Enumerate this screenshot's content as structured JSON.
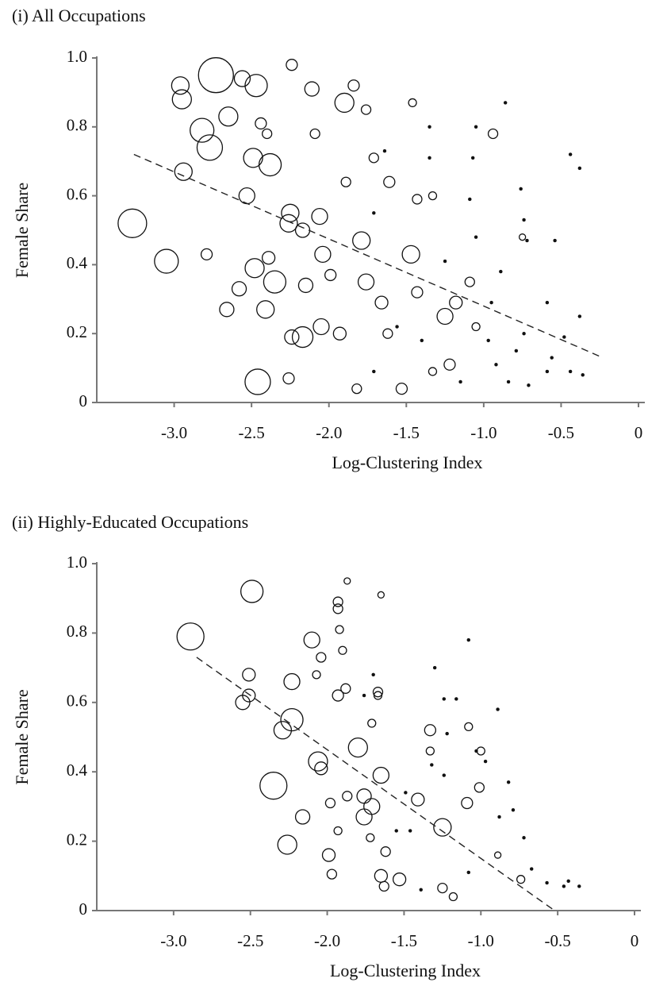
{
  "chart_data": [
    {
      "type": "scatter",
      "title": "(i) All Occupations",
      "x_label": "Log-Clustering Index",
      "y_label": "Female Share",
      "xlim": [
        -3.5,
        0
      ],
      "ylim": [
        0,
        1
      ],
      "xticks": [
        {
          "value": -3,
          "label": "-3.0"
        },
        -2.5,
        {
          "value": -2,
          "label": "-2.0"
        },
        -1.5,
        {
          "value": -1,
          "label": "-1.0"
        },
        -0.5,
        0
      ],
      "yticks": [
        0,
        0.2,
        0.4,
        0.6,
        0.8,
        {
          "value": 1,
          "label": "1.0"
        }
      ],
      "color": "#111111",
      "x": [
        -2.73,
        -3.27,
        -3.05,
        -2.46,
        -2.82,
        -2.77,
        -2.96,
        -2.95,
        -2.94,
        -2.65,
        -2.47,
        -2.49,
        -2.38,
        -2.35,
        -2.48,
        -2.41,
        -2.25,
        -2.26,
        -2.17,
        -2.06,
        -2.05,
        -2.04,
        -1.9,
        -1.79,
        -1.76,
        -1.47,
        -1.25,
        -2.56,
        -2.53,
        -2.58,
        -2.66,
        -2.11,
        -2.24,
        -2.17,
        -2.79,
        -2.24,
        -2.39,
        -2.15,
        -1.99,
        -1.84,
        -1.62,
        -1.93,
        -1.66,
        -1.43,
        -1.22,
        -1.18,
        -1.09,
        -0.94,
        -1.43,
        -1.61,
        -1.71,
        -1.76,
        -1.53,
        -1.82,
        -2.26,
        -2.4,
        -2.44,
        -2.09,
        -1.89,
        -1.46,
        -1.33,
        -1.33,
        -1.05,
        -0.75,
        -0.86,
        -0.44,
        -0.38,
        -0.76,
        -0.74,
        -0.72,
        -0.59,
        -0.54,
        -0.56,
        -0.59,
        -0.44,
        -0.36,
        -0.48,
        -0.97,
        -0.92,
        -1.15,
        -1.09,
        -1.05,
        -0.89,
        -1.25,
        -1.35,
        -1.64,
        -1.71,
        -1.56,
        -1.4,
        -1.71,
        -1.35,
        -1.07,
        -1.05,
        -0.79,
        -0.71,
        -0.38,
        -0.74,
        -0.84,
        -0.95
      ],
      "y": [
        0.95,
        0.52,
        0.41,
        0.06,
        0.79,
        0.74,
        0.92,
        0.88,
        0.67,
        0.83,
        0.92,
        0.71,
        0.69,
        0.35,
        0.39,
        0.27,
        0.55,
        0.52,
        0.19,
        0.54,
        0.22,
        0.43,
        0.87,
        0.47,
        0.35,
        0.43,
        0.25,
        0.94,
        0.6,
        0.33,
        0.27,
        0.91,
        0.19,
        0.5,
        0.43,
        0.98,
        0.42,
        0.34,
        0.37,
        0.92,
        0.2,
        0.2,
        0.29,
        0.32,
        0.11,
        0.29,
        0.35,
        0.78,
        0.59,
        0.64,
        0.71,
        0.85,
        0.04,
        0.04,
        0.07,
        0.78,
        0.81,
        0.78,
        0.64,
        0.87,
        0.6,
        0.09,
        0.22,
        0.48,
        0.87,
        0.72,
        0.68,
        0.62,
        0.53,
        0.47,
        0.29,
        0.47,
        0.13,
        0.09,
        0.09,
        0.08,
        0.19,
        0.18,
        0.11,
        0.06,
        0.59,
        0.48,
        0.38,
        0.41,
        0.8,
        0.73,
        0.55,
        0.22,
        0.18,
        0.09,
        0.71,
        0.71,
        0.8,
        0.15,
        0.05,
        0.25,
        0.2,
        0.06,
        0.29
      ],
      "sizes": [
        22,
        18,
        15,
        16,
        15,
        16,
        11,
        12,
        11,
        12,
        14,
        12,
        14,
        14,
        12,
        11,
        11,
        11,
        13,
        10,
        10,
        10,
        12,
        11,
        10,
        11,
        10,
        10,
        10,
        9,
        9,
        9,
        9,
        9,
        7,
        7,
        8,
        9,
        7,
        7,
        6,
        8,
        8,
        7,
        7,
        8,
        6,
        6,
        6,
        7,
        6,
        6,
        7,
        6,
        7,
        6,
        7,
        6,
        6,
        5,
        5,
        5,
        5,
        4,
        2,
        2,
        2,
        2,
        2,
        2,
        2,
        2,
        2,
        2,
        2,
        2,
        2,
        2,
        2,
        2,
        2,
        2,
        2,
        2,
        2,
        2,
        2,
        2,
        2,
        2,
        2,
        2,
        2,
        2,
        2,
        2,
        2,
        2,
        2
      ],
      "trend": {
        "x": [
          -3.26,
          -0.23
        ],
        "y": [
          0.72,
          0.13
        ]
      }
    },
    {
      "type": "scatter",
      "title": "(ii) Highly-Educated Occupations",
      "x_label": "Log-Clustering Index",
      "y_label": "Female Share",
      "xlim": [
        -3.5,
        0
      ],
      "ylim": [
        0,
        1
      ],
      "xticks": [
        {
          "value": -3,
          "label": "-3.0"
        },
        -2.5,
        {
          "value": -2,
          "label": "-2.0"
        },
        -1.5,
        {
          "value": -1,
          "label": "-1.0"
        },
        -0.5,
        0
      ],
      "yticks": [
        0,
        0.2,
        0.4,
        0.6,
        0.8,
        {
          "value": 1,
          "label": "1.0"
        }
      ],
      "color": "#111111",
      "x": [
        -2.89,
        -2.49,
        -2.35,
        -2.26,
        -2.23,
        -2.29,
        -2.23,
        -2.51,
        -2.55,
        -2.51,
        -2.1,
        -2.06,
        -2.04,
        -2.16,
        -1.99,
        -1.97,
        -1.8,
        -1.76,
        -1.71,
        -1.76,
        -1.65,
        -1.65,
        -1.53,
        -1.25,
        -1.41,
        -1.25,
        -1.09,
        -1.01,
        -1.87,
        -1.98,
        -1.93,
        -1.93,
        -2.07,
        -2.04,
        -1.93,
        -1.92,
        -1.9,
        -1.87,
        -1.93,
        -1.88,
        -1.67,
        -1.67,
        -1.71,
        -1.72,
        -1.62,
        -1.63,
        -1.65,
        -1.33,
        -1.33,
        -1.18,
        -1.08,
        -1.0,
        -0.89,
        -0.74,
        -1.3,
        -1.08,
        -0.89,
        -0.88,
        -0.72,
        -0.79,
        -0.82,
        -0.57,
        -0.46,
        -0.36,
        -0.43,
        -0.67,
        -0.97,
        -1.03,
        -1.22,
        -1.24,
        -1.16,
        -1.32,
        -1.24,
        -1.49,
        -1.46,
        -1.55,
        -1.7,
        -1.76,
        -1.08,
        -1.39
      ],
      "y": [
        0.79,
        0.92,
        0.36,
        0.19,
        0.55,
        0.52,
        0.66,
        0.68,
        0.6,
        0.62,
        0.78,
        0.43,
        0.41,
        0.27,
        0.16,
        0.105,
        0.47,
        0.27,
        0.3,
        0.33,
        0.39,
        0.1,
        0.09,
        0.24,
        0.32,
        0.065,
        0.31,
        0.355,
        0.33,
        0.31,
        0.23,
        0.62,
        0.68,
        0.73,
        0.89,
        0.81,
        0.75,
        0.95,
        0.87,
        0.64,
        0.63,
        0.62,
        0.54,
        0.21,
        0.17,
        0.07,
        0.91,
        0.52,
        0.46,
        0.04,
        0.53,
        0.46,
        0.16,
        0.09,
        0.7,
        0.78,
        0.58,
        0.27,
        0.21,
        0.29,
        0.37,
        0.08,
        0.07,
        0.07,
        0.085,
        0.12,
        0.43,
        0.46,
        0.51,
        0.61,
        0.61,
        0.42,
        0.39,
        0.34,
        0.23,
        0.23,
        0.68,
        0.62,
        0.11,
        0.06
      ],
      "sizes": [
        17,
        14,
        17,
        12,
        14,
        11,
        10,
        8,
        9,
        8,
        10,
        12,
        8,
        9,
        8,
        6,
        12,
        10,
        10,
        9,
        10,
        8,
        8,
        11,
        8,
        6,
        7,
        6,
        6,
        6,
        5,
        7,
        5,
        6,
        6,
        5,
        5,
        4,
        6,
        6,
        6,
        5,
        5,
        5,
        6,
        6,
        4,
        7,
        5,
        5,
        5,
        5,
        4,
        5,
        2,
        2,
        2,
        2,
        2,
        2,
        2,
        2,
        2,
        2,
        2,
        2,
        2,
        2,
        2,
        2,
        2,
        2,
        2,
        2,
        2,
        2,
        2,
        2,
        2,
        2
      ],
      "trend": {
        "x": [
          -2.85,
          -0.52
        ],
        "y": [
          0.73,
          0.0
        ]
      }
    }
  ]
}
